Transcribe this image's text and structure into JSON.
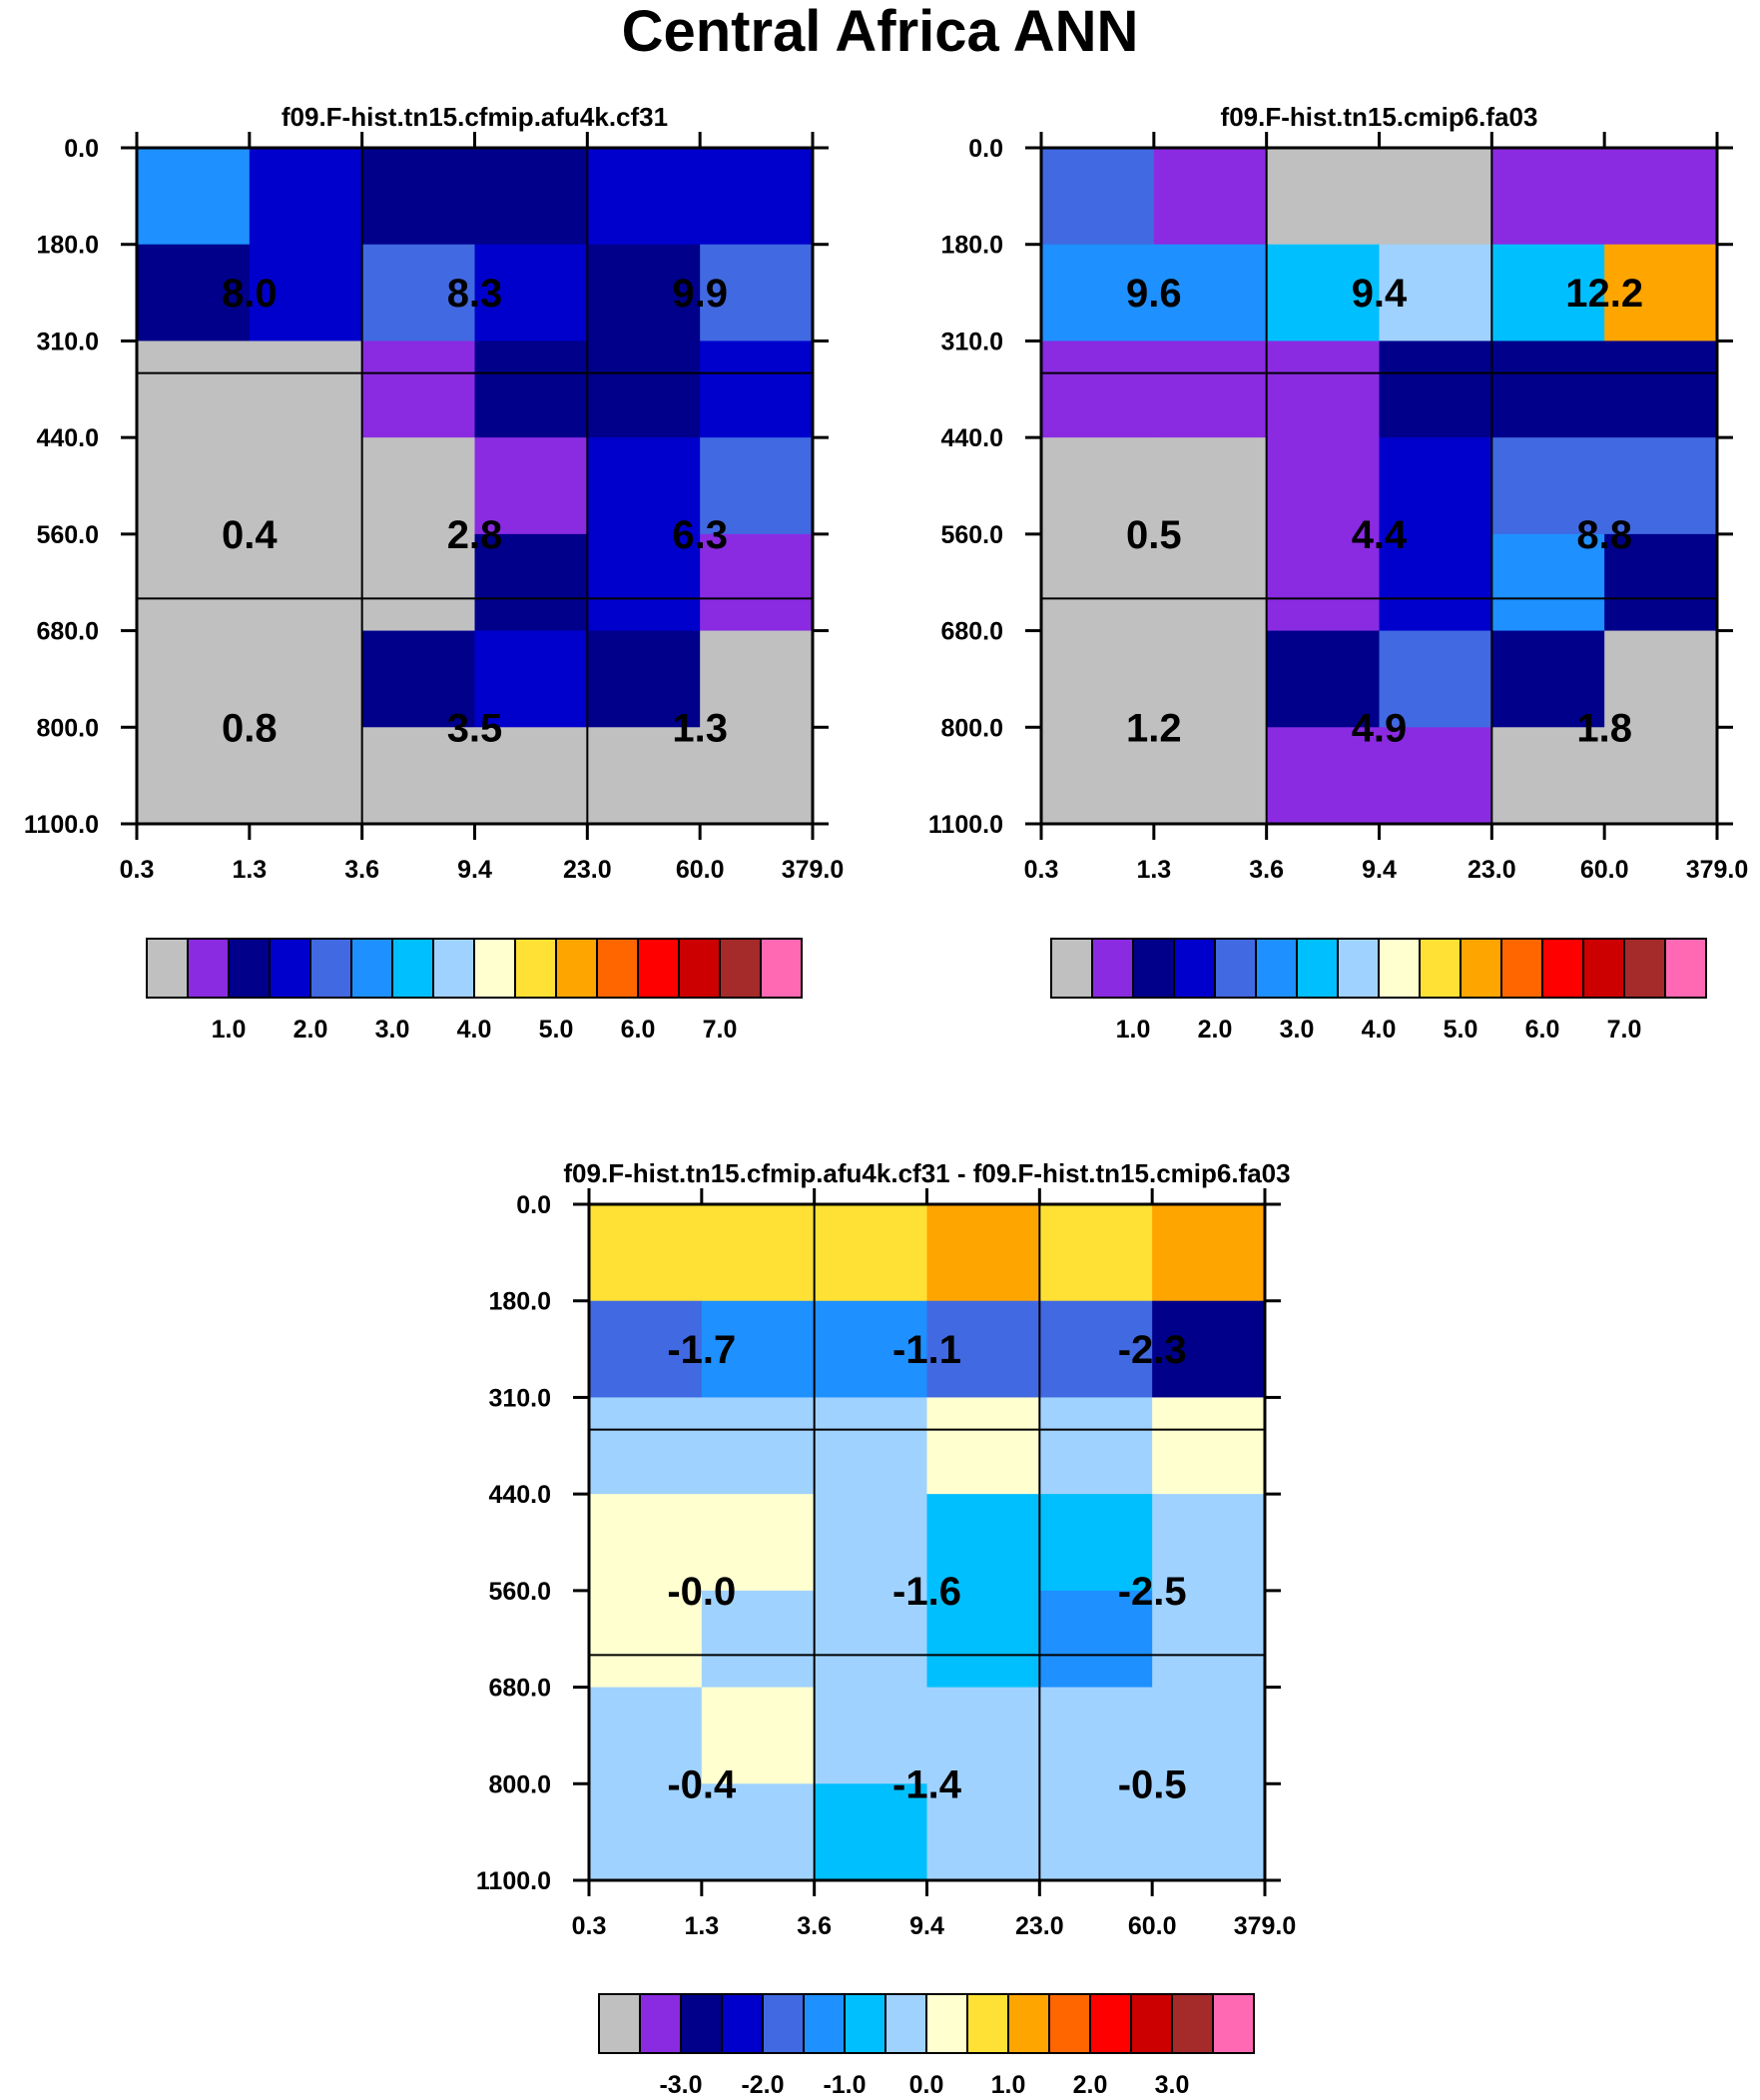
{
  "title": "Central Africa ANN",
  "colors": {
    "gray": "#c0c0c0",
    "purple": "#8a2be2",
    "navy": "#00008b",
    "blue": "#0000cd",
    "royal": "#4169e1",
    "dodger": "#1e90ff",
    "sky": "#00bfff",
    "lightsky": "#a0d2ff",
    "cream": "#ffffd0",
    "yellow": "#ffe135",
    "orange": "#ffa500",
    "darkorange": "#ff6600",
    "red": "#ff0000",
    "darkred": "#cc0000",
    "brown": "#a52a2a",
    "pink": "#ff69b4"
  },
  "colorbar": {
    "colors": [
      "gray",
      "purple",
      "navy",
      "blue",
      "royal",
      "dodger",
      "sky",
      "lightsky",
      "cream",
      "yellow",
      "orange",
      "darkorange",
      "red",
      "darkred",
      "brown",
      "pink"
    ]
  },
  "chart_data": [
    {
      "type": "heatmap",
      "id": "p1",
      "title": "f09.F-hist.tn15.cfmip.afu4k.cf31",
      "x_ticks": [
        "0.3",
        "1.3",
        "3.6",
        "9.4",
        "23.0",
        "60.0",
        "379.0"
      ],
      "y_ticks": [
        "0.0",
        "180.0",
        "310.0",
        "440.0",
        "560.0",
        "680.0",
        "800.0",
        "1100.0"
      ],
      "cells": [
        [
          "dodger",
          "blue",
          "navy",
          "navy",
          "blue",
          "blue"
        ],
        [
          "navy",
          "blue",
          "royal",
          "blue",
          "navy",
          "royal"
        ],
        [
          "gray",
          "gray",
          "purple",
          "navy",
          "navy",
          "blue"
        ],
        [
          "gray",
          "gray",
          "gray",
          "purple",
          "blue",
          "royal"
        ],
        [
          "gray",
          "gray",
          "gray",
          "navy",
          "blue",
          "purple"
        ],
        [
          "gray",
          "gray",
          "navy",
          "blue",
          "navy",
          "gray"
        ],
        [
          "gray",
          "gray",
          "gray",
          "gray",
          "gray",
          "gray"
        ]
      ],
      "block_labels": [
        [
          "8.0",
          "8.3",
          "9.9"
        ],
        [
          "0.4",
          "2.8",
          "6.3"
        ],
        [
          "0.8",
          "3.5",
          "1.3"
        ]
      ],
      "colorbar_labels": [
        "1.0",
        "2.0",
        "3.0",
        "4.0",
        "5.0",
        "6.0",
        "7.0"
      ]
    },
    {
      "type": "heatmap",
      "id": "p2",
      "title": "f09.F-hist.tn15.cmip6.fa03",
      "x_ticks": [
        "0.3",
        "1.3",
        "3.6",
        "9.4",
        "23.0",
        "60.0",
        "379.0"
      ],
      "y_ticks": [
        "0.0",
        "180.0",
        "310.0",
        "440.0",
        "560.0",
        "680.0",
        "800.0",
        "1100.0"
      ],
      "cells": [
        [
          "royal",
          "purple",
          "gray",
          "gray",
          "purple",
          "purple"
        ],
        [
          "dodger",
          "dodger",
          "sky",
          "lightsky",
          "sky",
          "orange"
        ],
        [
          "purple",
          "purple",
          "purple",
          "navy",
          "navy",
          "navy"
        ],
        [
          "gray",
          "gray",
          "purple",
          "blue",
          "royal",
          "royal"
        ],
        [
          "gray",
          "gray",
          "purple",
          "blue",
          "dodger",
          "navy"
        ],
        [
          "gray",
          "gray",
          "navy",
          "royal",
          "navy",
          "gray"
        ],
        [
          "gray",
          "gray",
          "purple",
          "purple",
          "gray",
          "gray"
        ]
      ],
      "block_labels": [
        [
          "9.6",
          "9.4",
          "12.2"
        ],
        [
          "0.5",
          "4.4",
          "8.8"
        ],
        [
          "1.2",
          "4.9",
          "1.8"
        ]
      ],
      "colorbar_labels": [
        "1.0",
        "2.0",
        "3.0",
        "4.0",
        "5.0",
        "6.0",
        "7.0"
      ]
    },
    {
      "type": "heatmap",
      "id": "p3",
      "title": "f09.F-hist.tn15.cfmip.afu4k.cf31 - f09.F-hist.tn15.cmip6.fa03",
      "x_ticks": [
        "0.3",
        "1.3",
        "3.6",
        "9.4",
        "23.0",
        "60.0",
        "379.0"
      ],
      "y_ticks": [
        "0.0",
        "180.0",
        "310.0",
        "440.0",
        "560.0",
        "680.0",
        "800.0",
        "1100.0"
      ],
      "cells": [
        [
          "yellow",
          "yellow",
          "yellow",
          "orange",
          "yellow",
          "orange"
        ],
        [
          "royal",
          "dodger",
          "dodger",
          "royal",
          "royal",
          "navy"
        ],
        [
          "lightsky",
          "lightsky",
          "lightsky",
          "cream",
          "lightsky",
          "cream"
        ],
        [
          "cream",
          "cream",
          "lightsky",
          "sky",
          "sky",
          "lightsky"
        ],
        [
          "cream",
          "lightsky",
          "lightsky",
          "sky",
          "dodger",
          "lightsky"
        ],
        [
          "lightsky",
          "cream",
          "lightsky",
          "lightsky",
          "lightsky",
          "lightsky"
        ],
        [
          "lightsky",
          "lightsky",
          "sky",
          "lightsky",
          "lightsky",
          "lightsky"
        ]
      ],
      "block_labels": [
        [
          "-1.7",
          "-1.1",
          "-2.3"
        ],
        [
          "-0.0",
          "-1.6",
          "-2.5"
        ],
        [
          "-0.4",
          "-1.4",
          "-0.5"
        ]
      ],
      "colorbar_labels": [
        "-3.0",
        "-2.0",
        "-1.0",
        "0.0",
        "1.0",
        "2.0",
        "3.0"
      ]
    }
  ]
}
